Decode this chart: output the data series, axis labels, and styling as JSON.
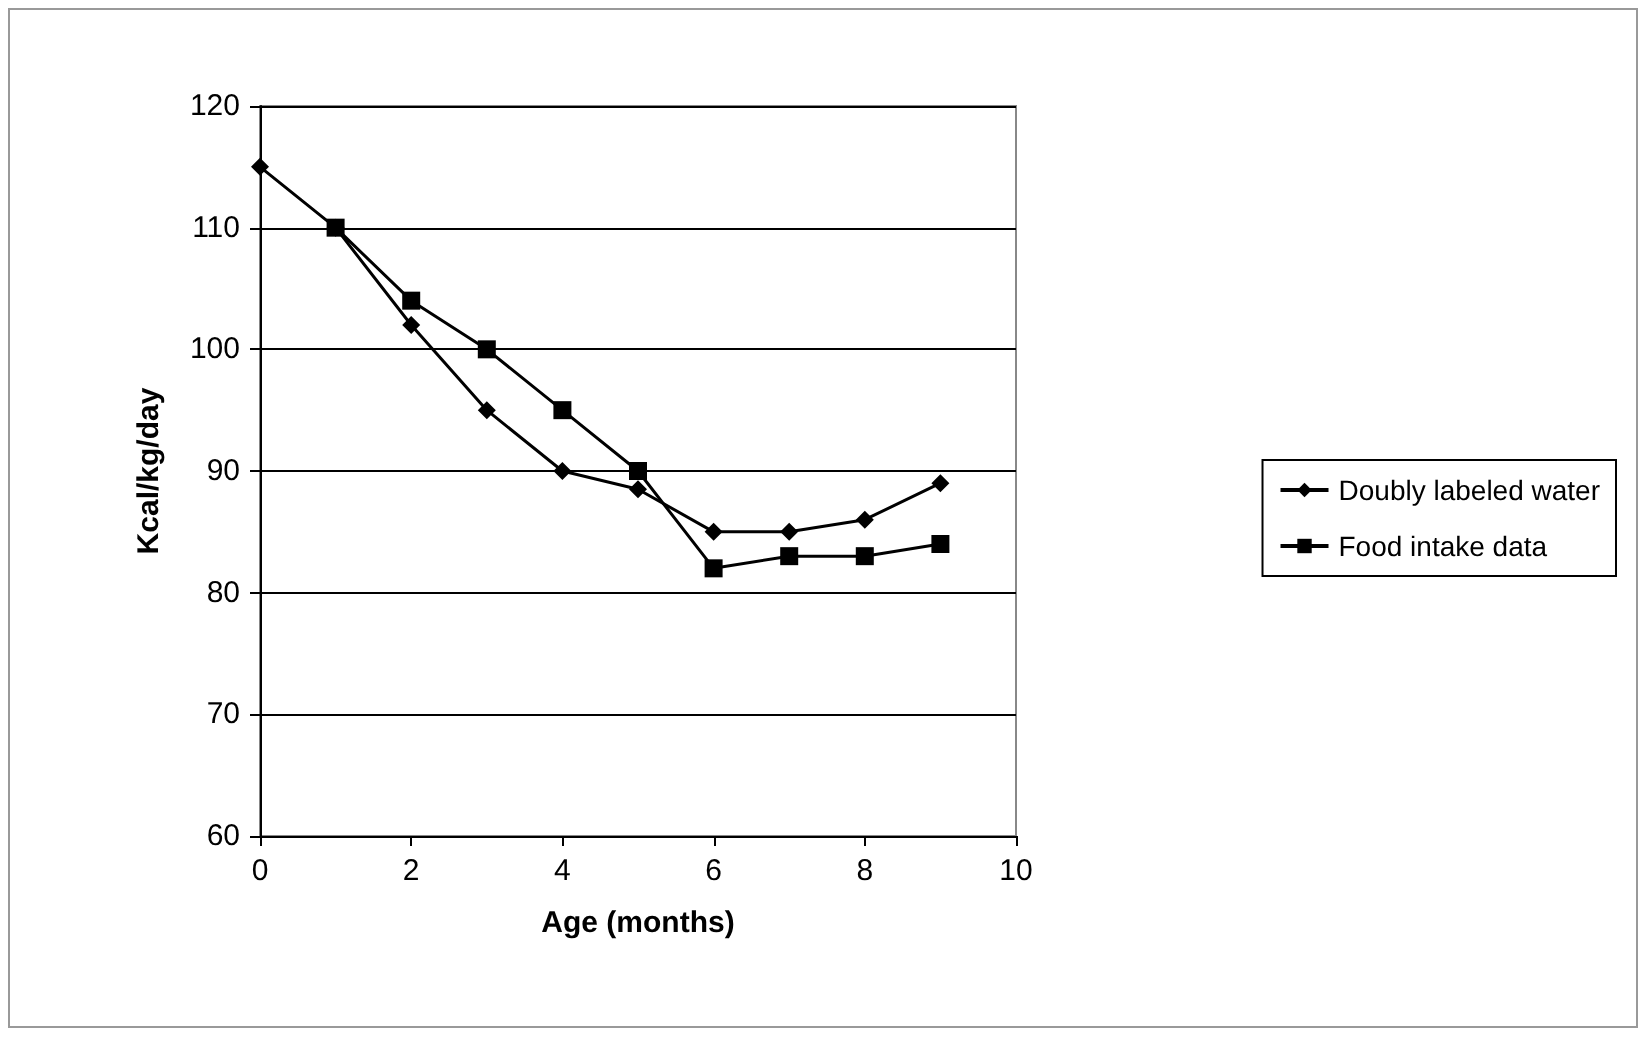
{
  "chart_data": {
    "type": "line",
    "xlabel": "Age (months)",
    "ylabel": "Kcal/kg/day",
    "xlim": [
      0,
      10
    ],
    "xticks": [
      0,
      2,
      4,
      6,
      8,
      10
    ],
    "ylim": [
      60,
      120
    ],
    "yticks": [
      60,
      70,
      80,
      90,
      100,
      110,
      120
    ],
    "grid": "y",
    "legend": "right",
    "series": [
      {
        "name": "Doubly labeled water",
        "color": "#000000",
        "marker": "diamond",
        "x": [
          0,
          1,
          2,
          3,
          4,
          5,
          6,
          7,
          8,
          9
        ],
        "values": [
          115,
          110,
          102,
          95,
          90,
          88.5,
          85,
          85,
          86,
          89
        ]
      },
      {
        "name": "Food intake data",
        "color": "#000000",
        "marker": "square",
        "x": [
          1,
          2,
          3,
          4,
          5,
          6,
          7,
          8,
          9
        ],
        "values": [
          110,
          104,
          100,
          95,
          90,
          82,
          83,
          83,
          84
        ]
      }
    ]
  }
}
